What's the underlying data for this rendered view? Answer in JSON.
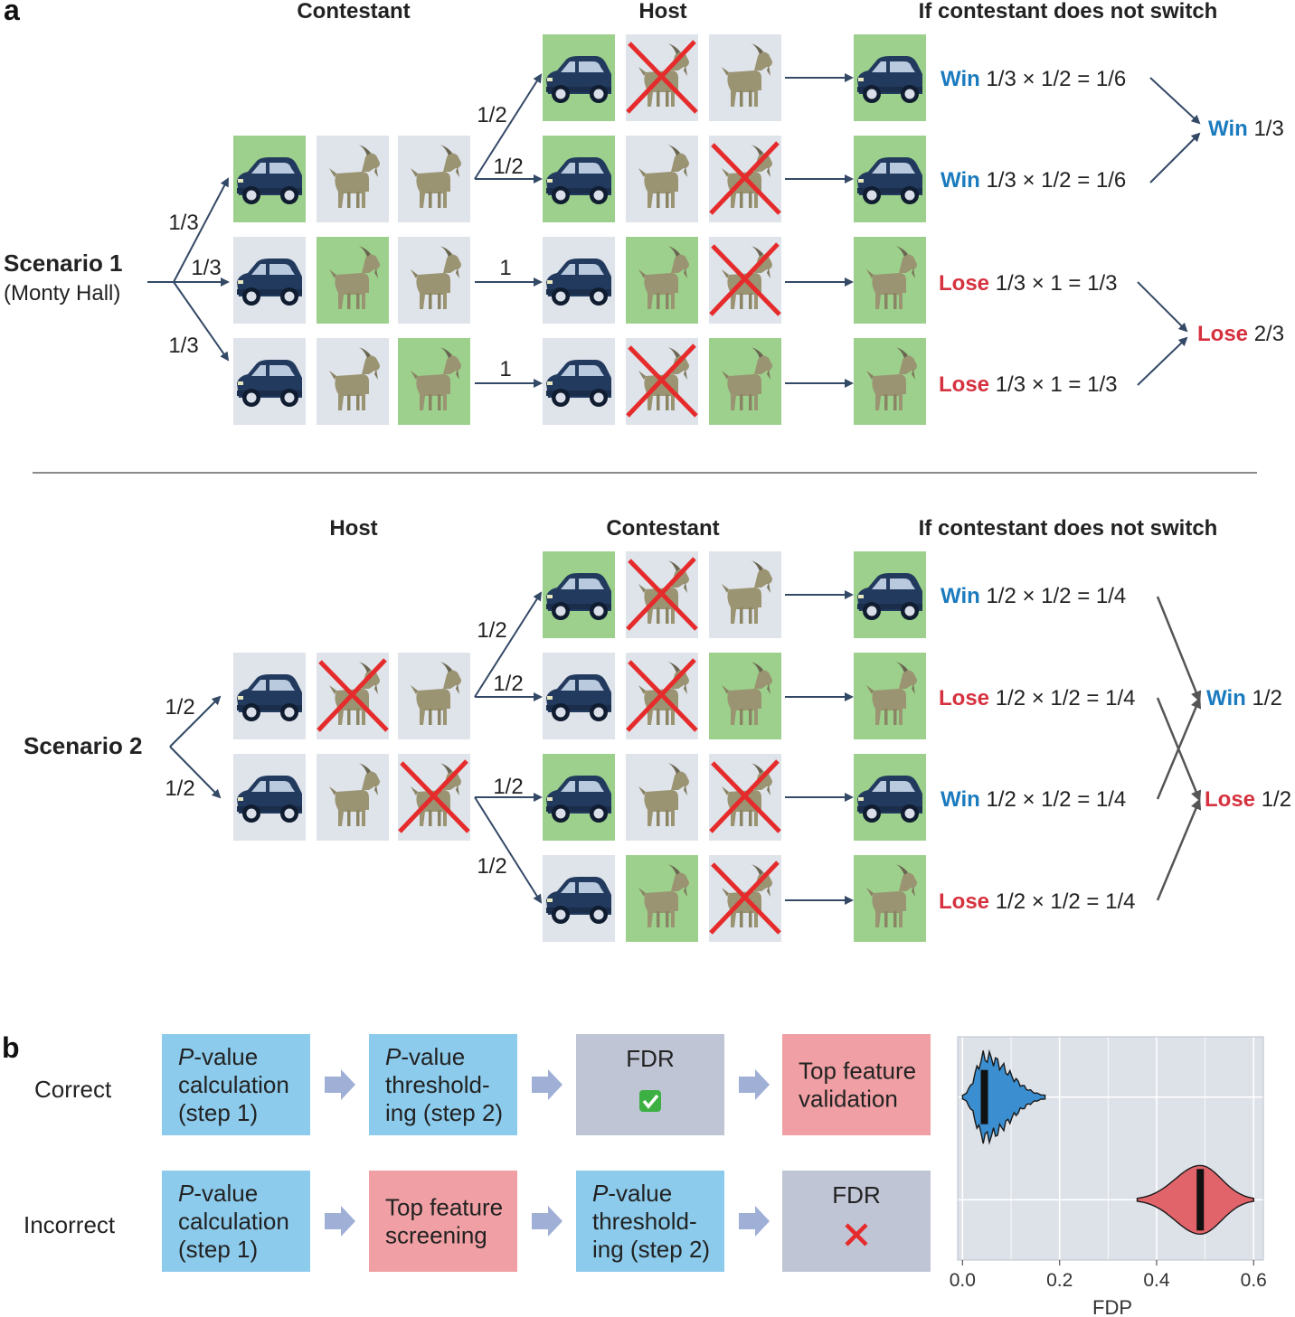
{
  "panel_a": {
    "letter": "a",
    "scenario1": {
      "title": "Scenario 1",
      "subtitle": "(Monty Hall)",
      "headers": {
        "contestant": "Contestant",
        "host": "Host",
        "outcome": "If contestant does not switch"
      },
      "branch_probs": [
        "1/3",
        "1/3",
        "1/3"
      ],
      "host_probs": [
        "1/2",
        "1/2",
        "1",
        "1"
      ],
      "rows": [
        {
          "prefix": "Win",
          "calc": "1/3 × 1/2 = 1/6"
        },
        {
          "prefix": "Win",
          "calc": "1/3 × 1/2 = 1/6"
        },
        {
          "prefix": "Lose",
          "calc": "1/3 × 1 = 1/3"
        },
        {
          "prefix": "Lose",
          "calc": "1/3 × 1 = 1/3"
        }
      ],
      "totals": [
        {
          "prefix": "Win",
          "value": "1/3"
        },
        {
          "prefix": "Lose",
          "value": "2/3"
        }
      ]
    },
    "scenario2": {
      "title": "Scenario 2",
      "headers": {
        "host": "Host",
        "contestant": "Contestant",
        "outcome": "If contestant does not switch"
      },
      "branch_probs": [
        "1/2",
        "1/2"
      ],
      "contestant_probs": [
        "1/2",
        "1/2",
        "1/2",
        "1/2"
      ],
      "rows": [
        {
          "prefix": "Win",
          "calc": "1/2 × 1/2 = 1/4"
        },
        {
          "prefix": "Lose",
          "calc": "1/2 × 1/2 = 1/4"
        },
        {
          "prefix": "Win",
          "calc": "1/2 × 1/2 = 1/4"
        },
        {
          "prefix": "Lose",
          "calc": "1/2 × 1/2 = 1/4"
        }
      ],
      "totals": [
        {
          "prefix": "Win",
          "value": "1/2"
        },
        {
          "prefix": "Lose",
          "value": "1/2"
        }
      ]
    }
  },
  "panel_b": {
    "letter": "b",
    "correct": {
      "label": "Correct",
      "steps": [
        {
          "lines": [
            "P-value",
            "calculation",
            "(step 1)"
          ],
          "color": "#8ccbec"
        },
        {
          "lines": [
            "P-value",
            "threshold-",
            "ing (step 2)"
          ],
          "color": "#8ccbec"
        },
        {
          "lines": [
            "FDR"
          ],
          "mark": "✅",
          "color": "#c0c5d6"
        },
        {
          "lines": [
            "Top feature",
            "validation"
          ],
          "color": "#f0a0a4"
        }
      ]
    },
    "incorrect": {
      "label": "Incorrect",
      "steps": [
        {
          "lines": [
            "P-value",
            "calculation",
            "(step 1)"
          ],
          "color": "#8ccbec"
        },
        {
          "lines": [
            "Top feature",
            "screening"
          ],
          "color": "#f0a0a4"
        },
        {
          "lines": [
            "P-value",
            "threshold-",
            "ing (step 2)"
          ],
          "color": "#8ccbec"
        },
        {
          "lines": [
            "FDR"
          ],
          "mark": "✕",
          "color": "#c0c5d6"
        }
      ]
    }
  },
  "chart_data": {
    "type": "violin",
    "xlabel": "FDP",
    "xlim": [
      -0.01,
      0.62
    ],
    "xticks": [
      "0.0",
      "0.2",
      "0.4",
      "0.6"
    ],
    "grid": true,
    "series": [
      {
        "median": 0.045,
        "min": 0.0,
        "max": 0.17,
        "color": "#3b8fd0"
      },
      {
        "median": 0.49,
        "min": 0.36,
        "max": 0.6,
        "color": "#e0646a"
      }
    ]
  },
  "colors": {
    "win": "#1b7bbf",
    "lose": "#d6313f",
    "cell_chosen": "#9dd08c",
    "cell_plain": "#dfe3ea",
    "cross": "#e52b2b",
    "arrow": "#344966",
    "car": "#223a5e",
    "goat": "#9a9472"
  }
}
